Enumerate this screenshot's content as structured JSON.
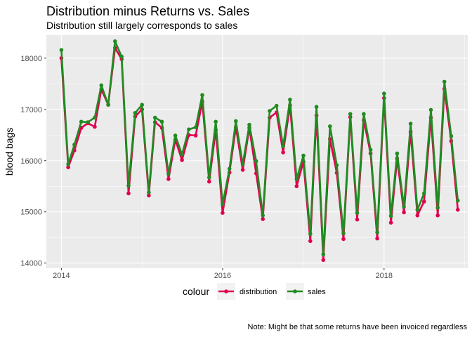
{
  "chart_data": {
    "type": "line",
    "title": "Distribution minus Returns vs. Sales",
    "subtitle": "Distribution still largely corresponds to sales",
    "xlabel": "",
    "ylabel": "blood bags",
    "caption": "Note: Might be that some returns have been invoiced regardless",
    "legend_title": "colour",
    "legend_position": "bottom",
    "grid": true,
    "xlim": [
      "2013-10-25",
      "2019-01-15"
    ],
    "ylim": [
      13900,
      18450
    ],
    "x_ticks": [
      {
        "value": "2014-01-01",
        "label": "2014"
      },
      {
        "value": "2016-01-01",
        "label": "2016"
      },
      {
        "value": "2018-01-01",
        "label": "2018"
      }
    ],
    "y_ticks": [
      {
        "value": 14000,
        "label": "14000"
      },
      {
        "value": 15000,
        "label": "15000"
      },
      {
        "value": 16000,
        "label": "16000"
      },
      {
        "value": 17000,
        "label": "17000"
      },
      {
        "value": 18000,
        "label": "18000"
      }
    ],
    "x": [
      "2014-01",
      "2014-02",
      "2014-03",
      "2014-04",
      "2014-05",
      "2014-06",
      "2014-07",
      "2014-08",
      "2014-09",
      "2014-10",
      "2014-11",
      "2014-12",
      "2015-01",
      "2015-02",
      "2015-03",
      "2015-04",
      "2015-05",
      "2015-06",
      "2015-07",
      "2015-08",
      "2015-09",
      "2015-10",
      "2015-11",
      "2015-12",
      "2016-01",
      "2016-02",
      "2016-03",
      "2016-04",
      "2016-05",
      "2016-06",
      "2016-07",
      "2016-08",
      "2016-09",
      "2016-10",
      "2016-11",
      "2016-12",
      "2017-01",
      "2017-02",
      "2017-03",
      "2017-04",
      "2017-05",
      "2017-06",
      "2017-07",
      "2017-08",
      "2017-09",
      "2017-10",
      "2017-11",
      "2017-12",
      "2018-01",
      "2018-02",
      "2018-03",
      "2018-04",
      "2018-05",
      "2018-06",
      "2018-07",
      "2018-08",
      "2018-09",
      "2018-10",
      "2018-11",
      "2018-12"
    ],
    "series": [
      {
        "name": "distribution",
        "color": "#e0004d",
        "values": [
          18000,
          15870,
          16200,
          16640,
          16730,
          16660,
          17390,
          17090,
          18200,
          17980,
          15360,
          16860,
          17000,
          15320,
          16750,
          16640,
          15640,
          16410,
          16010,
          16500,
          16490,
          17150,
          15590,
          16600,
          14980,
          15770,
          16650,
          15820,
          16640,
          15750,
          14860,
          16840,
          16940,
          16160,
          17080,
          15500,
          15980,
          14430,
          16880,
          14060,
          16420,
          15760,
          14470,
          16850,
          14850,
          16790,
          16140,
          14480,
          17220,
          14790,
          16040,
          14990,
          16560,
          14930,
          15200,
          16840,
          14930,
          17400,
          16380,
          15040
        ]
      },
      {
        "name": "sales",
        "color": "#228b22",
        "values": [
          18160,
          15930,
          16310,
          16760,
          16750,
          16840,
          17470,
          17090,
          18330,
          18030,
          15510,
          16930,
          17090,
          15380,
          16840,
          16760,
          15740,
          16490,
          16120,
          16610,
          16650,
          17280,
          15670,
          16760,
          15150,
          15840,
          16770,
          15930,
          16700,
          15990,
          14930,
          16970,
          17070,
          16280,
          17190,
          15640,
          16100,
          14570,
          17050,
          14170,
          16670,
          15910,
          14580,
          16910,
          14980,
          16910,
          16210,
          14600,
          17310,
          14920,
          16140,
          15100,
          16720,
          15040,
          15360,
          16990,
          15080,
          17540,
          16480,
          15220
        ]
      }
    ]
  }
}
